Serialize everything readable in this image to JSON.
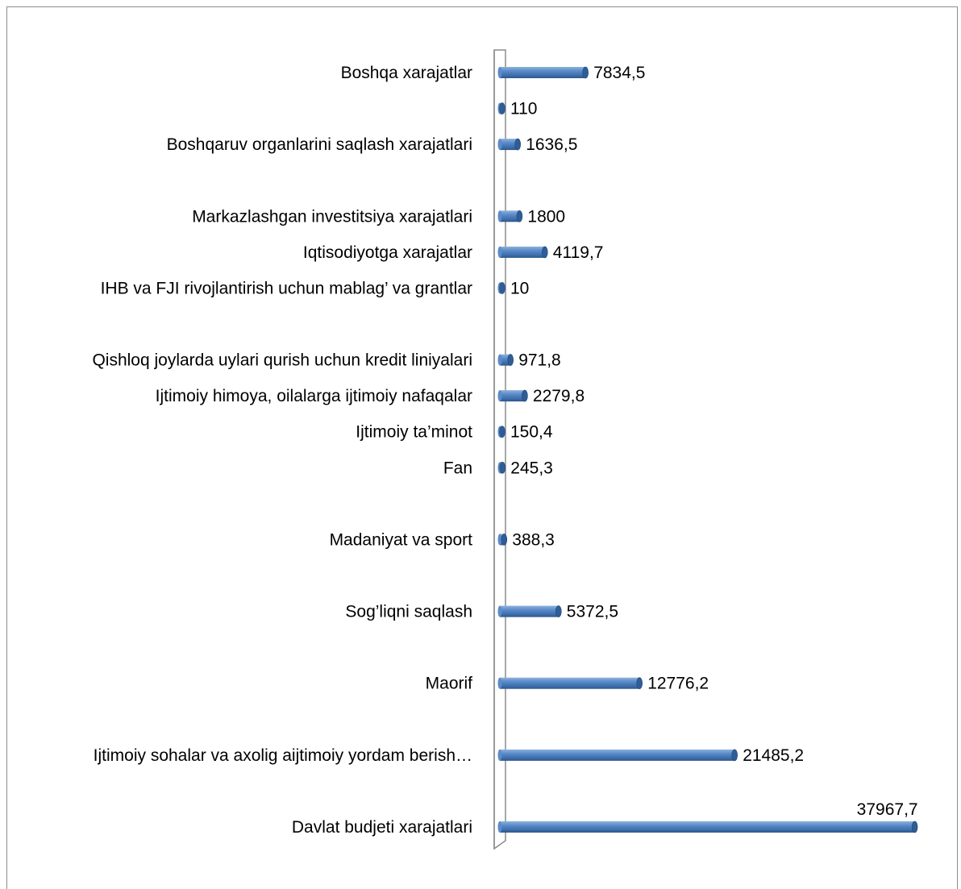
{
  "chart_data": {
    "type": "bar",
    "orientation": "horizontal",
    "style": "3d-cylinder",
    "bar_color": "#4f81bd",
    "categories": [
      "Boshqa xarajatlar",
      "",
      "Boshqaruv  organlarini saqlash  xarajatlari",
      "",
      "Markazlashgan investitsiya xarajatlari",
      "Iqtisodiyotga xarajatlar",
      "IHB va FJI rivojlantirish uchun mablag’ va grantlar",
      "",
      "Qishloq joylarda uylari qurish uchun kredit liniyalari",
      "Ijtimoiy himoya, oilalarga ijtimoiy nafaqalar",
      "Ijtimoiy ta’minot",
      "Fan",
      "",
      "Madaniyat va sport",
      "",
      "Sog’liqni saqlash",
      "",
      "Maorif",
      "",
      "Ijtimoiy sohalar va axolig aijtimoiy yordam berish…",
      "",
      "Davlat budjeti xarajatlari"
    ],
    "values": [
      7834.5,
      110,
      1636.5,
      null,
      1800,
      4119.7,
      10,
      null,
      971.8,
      2279.8,
      150.4,
      245.3,
      null,
      388.3,
      null,
      5372.5,
      null,
      12776.2,
      null,
      21485.2,
      null,
      37967.7
    ],
    "value_labels": [
      "7834,5",
      "110",
      "1636,5",
      "",
      "1800",
      "4119,7",
      "10",
      "",
      "971,8",
      "2279,8",
      "150,4",
      "245,3",
      "",
      "388,3",
      "",
      "5372,5",
      "",
      "12776,2",
      "",
      "21485,2",
      "",
      "37967,7"
    ],
    "title": "",
    "xlabel": "",
    "ylabel": "",
    "xlim": [
      0,
      38000
    ],
    "grid": false,
    "legend": "none"
  }
}
